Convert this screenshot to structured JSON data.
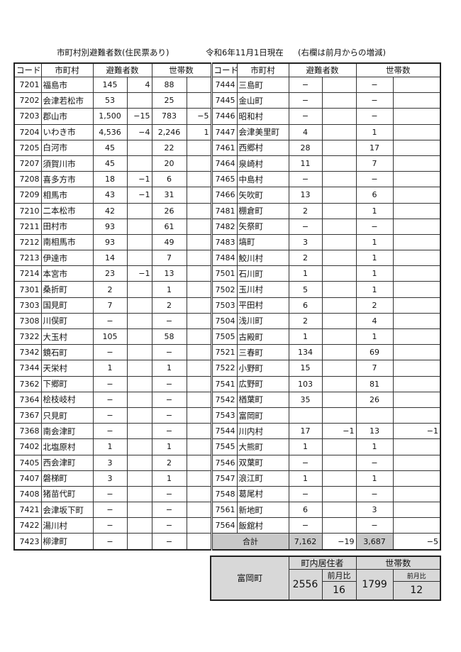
{
  "header": {
    "title": "市町村別避難者数(住民票あり)",
    "date": "令和6年11月1日現在",
    "note": "(右欄は前月からの増減)"
  },
  "columns": {
    "code": "コード",
    "name": "市町村",
    "evacuees": "避難者数",
    "households": "世帯数"
  },
  "left_rows": [
    [
      "7201",
      "福島市",
      "145",
      "4",
      "88",
      ""
    ],
    [
      "7202",
      "会津若松市",
      "53",
      "",
      "25",
      ""
    ],
    [
      "7203",
      "郡山市",
      "1,500",
      "−15",
      "783",
      "−5"
    ],
    [
      "7204",
      "いわき市",
      "4,536",
      "−4",
      "2,246",
      "1"
    ],
    [
      "7205",
      "白河市",
      "45",
      "",
      "22",
      ""
    ],
    [
      "7207",
      "須賀川市",
      "45",
      "",
      "20",
      ""
    ],
    [
      "7208",
      "喜多方市",
      "18",
      "−1",
      "6",
      ""
    ],
    [
      "7209",
      "相馬市",
      "43",
      "−1",
      "31",
      ""
    ],
    [
      "7210",
      "二本松市",
      "42",
      "",
      "26",
      ""
    ],
    [
      "7211",
      "田村市",
      "93",
      "",
      "61",
      ""
    ],
    [
      "7212",
      "南相馬市",
      "93",
      "",
      "49",
      ""
    ],
    [
      "7213",
      "伊達市",
      "14",
      "",
      "7",
      ""
    ],
    [
      "7214",
      "本宮市",
      "23",
      "−1",
      "13",
      ""
    ],
    [
      "7301",
      "桑折町",
      "2",
      "",
      "1",
      ""
    ],
    [
      "7303",
      "国見町",
      "7",
      "",
      "2",
      ""
    ],
    [
      "7308",
      "川俣町",
      "−",
      "",
      "−",
      ""
    ],
    [
      "7322",
      "大玉村",
      "105",
      "",
      "58",
      ""
    ],
    [
      "7342",
      "鏡石町",
      "−",
      "",
      "−",
      ""
    ],
    [
      "7344",
      "天栄村",
      "1",
      "",
      "1",
      ""
    ],
    [
      "7362",
      "下郷町",
      "−",
      "",
      "−",
      ""
    ],
    [
      "7364",
      "桧枝岐村",
      "−",
      "",
      "−",
      ""
    ],
    [
      "7367",
      "只見町",
      "−",
      "",
      "−",
      ""
    ],
    [
      "7368",
      "南会津町",
      "−",
      "",
      "−",
      ""
    ],
    [
      "7402",
      "北塩原村",
      "1",
      "",
      "1",
      ""
    ],
    [
      "7405",
      "西会津町",
      "3",
      "",
      "2",
      ""
    ],
    [
      "7407",
      "磐梯町",
      "3",
      "",
      "1",
      ""
    ],
    [
      "7408",
      "猪苗代町",
      "−",
      "",
      "−",
      ""
    ],
    [
      "7421",
      "会津坂下町",
      "−",
      "",
      "−",
      ""
    ],
    [
      "7422",
      "湯川村",
      "−",
      "",
      "−",
      ""
    ],
    [
      "7423",
      "柳津町",
      "−",
      "",
      "−",
      ""
    ]
  ],
  "right_rows": [
    [
      "7444",
      "三島町",
      "−",
      "",
      "−",
      ""
    ],
    [
      "7445",
      "金山町",
      "−",
      "",
      "−",
      ""
    ],
    [
      "7446",
      "昭和村",
      "−",
      "",
      "−",
      ""
    ],
    [
      "7447",
      "会津美里町",
      "4",
      "",
      "1",
      ""
    ],
    [
      "7461",
      "西郷村",
      "28",
      "",
      "17",
      ""
    ],
    [
      "7464",
      "泉崎村",
      "11",
      "",
      "7",
      ""
    ],
    [
      "7465",
      "中島村",
      "−",
      "",
      "−",
      ""
    ],
    [
      "7466",
      "矢吹町",
      "13",
      "",
      "6",
      ""
    ],
    [
      "7481",
      "棚倉町",
      "2",
      "",
      "1",
      ""
    ],
    [
      "7482",
      "矢祭町",
      "−",
      "",
      "−",
      ""
    ],
    [
      "7483",
      "塙町",
      "3",
      "",
      "1",
      ""
    ],
    [
      "7484",
      "鮫川村",
      "2",
      "",
      "1",
      ""
    ],
    [
      "7501",
      "石川町",
      "1",
      "",
      "1",
      ""
    ],
    [
      "7502",
      "玉川村",
      "5",
      "",
      "1",
      ""
    ],
    [
      "7503",
      "平田村",
      "6",
      "",
      "2",
      ""
    ],
    [
      "7504",
      "浅川町",
      "2",
      "",
      "4",
      ""
    ],
    [
      "7505",
      "古殿町",
      "1",
      "",
      "1",
      ""
    ],
    [
      "7521",
      "三春町",
      "134",
      "",
      "69",
      ""
    ],
    [
      "7522",
      "小野町",
      "15",
      "",
      "7",
      ""
    ],
    [
      "7541",
      "広野町",
      "103",
      "",
      "81",
      ""
    ],
    [
      "7542",
      "楢葉町",
      "35",
      "",
      "26",
      ""
    ],
    [
      "7543",
      "富岡町",
      "",
      "",
      "",
      ""
    ],
    [
      "7544",
      "川内村",
      "17",
      "−1",
      "13",
      "−1"
    ],
    [
      "7545",
      "大熊町",
      "1",
      "",
      "1",
      ""
    ],
    [
      "7546",
      "双葉町",
      "−",
      "",
      "−",
      ""
    ],
    [
      "7547",
      "浪江町",
      "1",
      "",
      "1",
      ""
    ],
    [
      "7548",
      "葛尾村",
      "−",
      "",
      "−",
      ""
    ],
    [
      "7561",
      "新地町",
      "6",
      "",
      "3",
      ""
    ],
    [
      "7564",
      "飯舘村",
      "−",
      "",
      "−",
      ""
    ]
  ],
  "total": {
    "label": "合計",
    "evacuees": "7,162",
    "evacuees_diff": "−19",
    "households": "3,687",
    "households_diff": "−5"
  },
  "summary": {
    "town": "富岡町",
    "residents_label": "町内居住者",
    "residents": "2556",
    "residents_diff_label": "前月比",
    "residents_diff": "16",
    "households_label": "世帯数",
    "households": "1799",
    "households_diff_label": "前月比",
    "households_diff": "12",
    "background": "#d8d8d8"
  },
  "colors": {
    "total_bg": "#c8c8c8",
    "border": "#333333"
  }
}
